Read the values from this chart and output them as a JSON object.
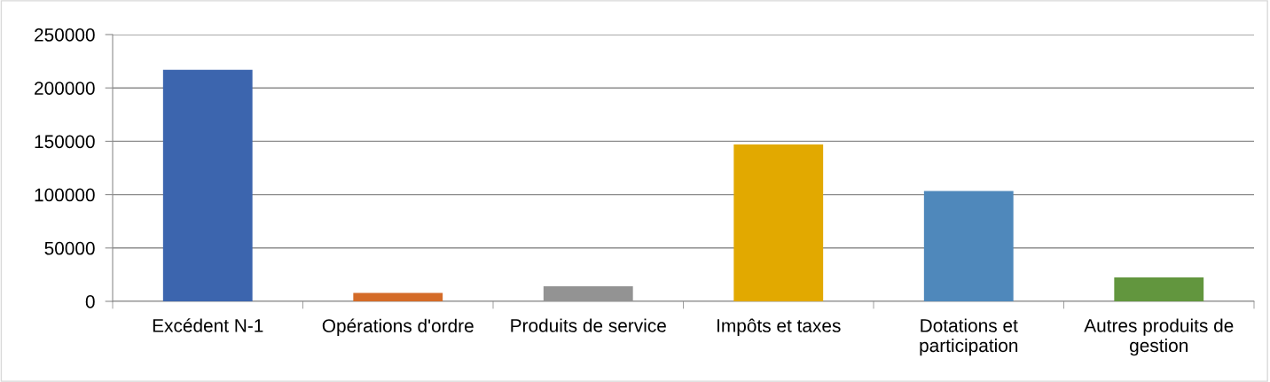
{
  "chart_data": {
    "type": "bar",
    "categories": [
      "Excédent N-1",
      "Opérations d'ordre",
      "Produits de service",
      "Impôts et taxes",
      "Dotations et\nparticipation",
      "Autres produits de\ngestion"
    ],
    "values": [
      217000,
      7800,
      14200,
      147000,
      103400,
      22400
    ],
    "colors": [
      "#3c65ae",
      "#d46b28",
      "#939393",
      "#e2a900",
      "#4f88bb",
      "#62963e"
    ],
    "ylim": [
      0,
      250000
    ],
    "yticks": [
      0,
      50000,
      100000,
      150000,
      200000,
      250000
    ],
    "grid": "y",
    "legend": false
  }
}
